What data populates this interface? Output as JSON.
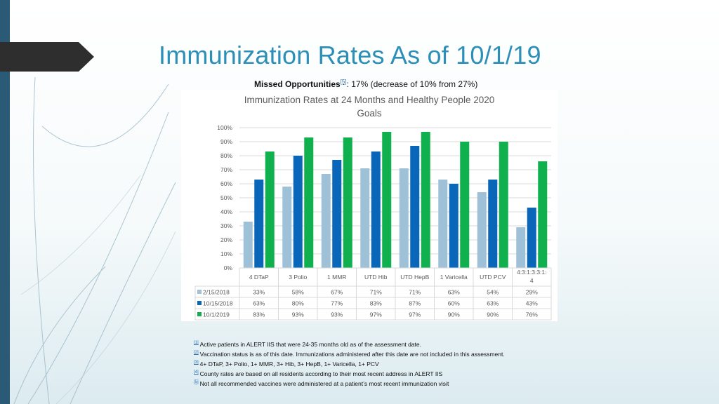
{
  "slide": {
    "title": "Immunization Rates As of 10/1/19",
    "subtitle_bold": "Missed Opportunities",
    "subtitle_ref": "[5]",
    "subtitle_rest": ": 17% (decrease of 10% from 27%)"
  },
  "colors": {
    "accent": "#2b8fb8",
    "series": [
      "#9fc1d8",
      "#0a66b8",
      "#11b04e"
    ]
  },
  "chart_data": {
    "type": "bar",
    "title_lines": [
      "Immunization Rates at 24 Months and Healthy People 2020",
      "Goals"
    ],
    "categories": [
      "4 DTaP",
      "3 Polio",
      "1 MMR",
      "UTD Hib",
      "UTD HepB",
      "1 Varicella",
      "UTD PCV",
      "4:3:1:3:3:1:4"
    ],
    "category_label_lines": [
      [
        "4 DTaP"
      ],
      [
        "3 Polio"
      ],
      [
        "1 MMR"
      ],
      [
        "UTD Hib"
      ],
      [
        "UTD HepB"
      ],
      [
        "1 Varicella"
      ],
      [
        "UTD PCV"
      ],
      [
        "4:3:1:3:3:1:",
        "4"
      ]
    ],
    "series": [
      {
        "name": "2/15/2018",
        "values": [
          33,
          58,
          67,
          71,
          71,
          63,
          54,
          29
        ]
      },
      {
        "name": "10/15/2018",
        "values": [
          63,
          80,
          77,
          83,
          87,
          60,
          63,
          43
        ]
      },
      {
        "name": "10/1/2019",
        "values": [
          83,
          93,
          93,
          97,
          97,
          90,
          90,
          76
        ]
      }
    ],
    "yticks": [
      "0%",
      "10%",
      "20%",
      "30%",
      "40%",
      "50%",
      "60%",
      "70%",
      "80%",
      "90%",
      "100%"
    ],
    "ylim": [
      0,
      100
    ],
    "grid": true,
    "legend": "data-table"
  },
  "footnotes": [
    {
      "ref": "[1]",
      "text": "Active patients in ALERT IIS that were 24-35 months old as of the assessment date."
    },
    {
      "ref": "[2]",
      "text": "Vaccination status is as of this date. Immunizations administered after this date are not included in this assessment."
    },
    {
      "ref": "[3]",
      "text": "4+ DTaP, 3+ Polio, 1+ MMR, 3+ Hib, 3+ HepB, 1+ Varicella, 1+ PCV"
    },
    {
      "ref": "[4]",
      "text": "County rates are based on all residents according to their most recent address in ALERT IIS"
    },
    {
      "ref": "[5]",
      "text": "Not all recommended vaccines were administered at a patient’s most recent immunization visit"
    }
  ]
}
